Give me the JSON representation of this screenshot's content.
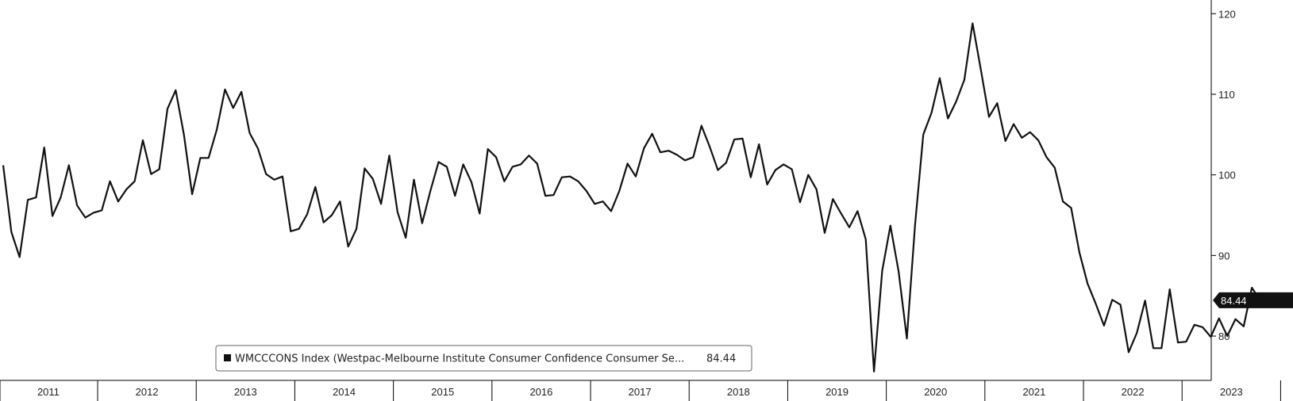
{
  "chart_data": {
    "type": "line",
    "series": [
      {
        "name": "WMCCCONS Index (Westpac-Melbourne Institute Consumer Confidence Consumer Se...",
        "last_value_label": "84.44",
        "color": "#111111",
        "start": "2011-01",
        "frequency": "monthly",
        "values": [
          101.2,
          92.9,
          89.8,
          96.9,
          97.2,
          103.4,
          94.9,
          97.2,
          101.2,
          96.2,
          94.7,
          95.3,
          95.6,
          99.2,
          96.7,
          98.2,
          99.2,
          104.3,
          100.1,
          100.7,
          108.2,
          110.5,
          105.0,
          97.6,
          102.1,
          102.1,
          105.6,
          110.6,
          108.3,
          110.3,
          105.2,
          103.3,
          100.1,
          99.4,
          99.8,
          93.0,
          93.3,
          95.1,
          98.5,
          94.1,
          95.0,
          96.7,
          91.1,
          93.3,
          100.8,
          99.5,
          96.4,
          102.4,
          95.4,
          92.2,
          99.4,
          94.0,
          98.0,
          101.6,
          101.0,
          97.4,
          101.3,
          99.1,
          95.2,
          103.2,
          102.2,
          99.2,
          101.0,
          101.3,
          102.4,
          101.4,
          97.4,
          97.5,
          99.7,
          99.8,
          99.2,
          98.0,
          96.4,
          96.7,
          95.5,
          98.0,
          101.4,
          99.8,
          103.3,
          105.1,
          102.8,
          103.0,
          102.5,
          101.8,
          102.2,
          106.1,
          103.5,
          100.6,
          101.5,
          104.4,
          104.5,
          99.7,
          103.8,
          98.8,
          100.6,
          101.3,
          100.7,
          96.6,
          100.0,
          98.2,
          92.8,
          97.0,
          95.2,
          93.5,
          95.5,
          92.0,
          75.6,
          88.1,
          93.7,
          88.0,
          79.7,
          93.8,
          105.0,
          107.7,
          112.0,
          107.0,
          109.1,
          111.8,
          118.8,
          113.1,
          107.2,
          108.9,
          104.2,
          106.3,
          104.6,
          105.3,
          104.3,
          102.2,
          100.9,
          96.7,
          95.9,
          90.4,
          86.5,
          84.0,
          81.3,
          84.5,
          83.9,
          78.0,
          80.4,
          84.4,
          78.5,
          78.5,
          85.8,
          79.2,
          79.3,
          81.4,
          81.1,
          79.9,
          82.2,
          80.0,
          82.1,
          81.2,
          86.0,
          84.44
        ]
      }
    ],
    "x_tick_labels": [
      "2011",
      "2012",
      "2013",
      "2014",
      "2015",
      "2016",
      "2017",
      "2018",
      "2019",
      "2020",
      "2021",
      "2022",
      "2023"
    ],
    "y_tick_labels": [
      80,
      90,
      100,
      110,
      120
    ],
    "ylim": [
      74.5,
      121.5
    ],
    "y_axis_position": "right",
    "grid": false,
    "legend": "bottom-center",
    "title": "",
    "xlabel": "",
    "ylabel": ""
  }
}
